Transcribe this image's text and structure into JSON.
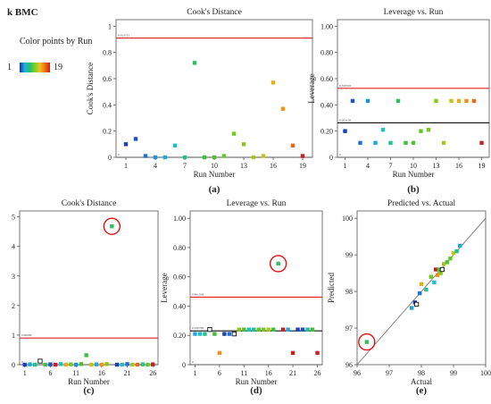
{
  "header": {
    "title": "k BMC"
  },
  "legend": {
    "title": "Color points by Run",
    "min": "1",
    "max": "19"
  },
  "chart_data": [
    {
      "id": "a",
      "type": "scatter",
      "title": "Cook's Distance",
      "xlabel": "Run Number",
      "ylabel": "Cook's Distance",
      "caption": "(a)",
      "xlim": [
        0,
        20
      ],
      "ylim": [
        0,
        1.05
      ],
      "xticks": [
        1,
        4,
        7,
        10,
        13,
        16,
        19
      ],
      "yticks": [
        0,
        0.2,
        0.4,
        0.6,
        0.8,
        1
      ],
      "ytick_labels": [
        "0",
        "0.2",
        "0.4",
        "0.6",
        "0.8",
        "1"
      ],
      "hlines": [
        {
          "y": 0.91,
          "color": "#e02020",
          "label": "0.913712"
        },
        {
          "y": 0,
          "color": "#555555",
          "label": "0"
        }
      ],
      "points": [
        {
          "x": 1,
          "y": 0.1,
          "color": "#1a3fb8"
        },
        {
          "x": 2,
          "y": 0.14,
          "color": "#2050c8"
        },
        {
          "x": 3,
          "y": 0.01,
          "color": "#2070d8"
        },
        {
          "x": 4,
          "y": 0.0,
          "color": "#2090e0"
        },
        {
          "x": 5,
          "y": 0.0,
          "color": "#20a8d8"
        },
        {
          "x": 6,
          "y": 0.09,
          "color": "#20c0c8"
        },
        {
          "x": 7,
          "y": 0.0,
          "color": "#24c090"
        },
        {
          "x": 8,
          "y": 0.72,
          "color": "#30c060"
        },
        {
          "x": 9,
          "y": 0.0,
          "color": "#40c040"
        },
        {
          "x": 10,
          "y": 0.0,
          "color": "#50c030"
        },
        {
          "x": 11,
          "y": 0.01,
          "color": "#60c828"
        },
        {
          "x": 12,
          "y": 0.18,
          "color": "#70c820"
        },
        {
          "x": 13,
          "y": 0.1,
          "color": "#88c818"
        },
        {
          "x": 14,
          "y": 0.0,
          "color": "#a8c818"
        },
        {
          "x": 15,
          "y": 0.01,
          "color": "#c8c018"
        },
        {
          "x": 16,
          "y": 0.57,
          "color": "#e0b018"
        },
        {
          "x": 17,
          "y": 0.37,
          "color": "#f09018"
        },
        {
          "x": 18,
          "y": 0.09,
          "color": "#f06818"
        },
        {
          "x": 19,
          "y": 0.01,
          "color": "#c82020"
        }
      ]
    },
    {
      "id": "b",
      "type": "scatter",
      "title": "Leverage vs. Run",
      "xlabel": "Run Number",
      "ylabel": "Leverage",
      "caption": "(b)",
      "xlim": [
        0,
        20
      ],
      "ylim": [
        0,
        1.05
      ],
      "xticks": [
        1,
        4,
        7,
        10,
        13,
        16,
        19
      ],
      "yticks": [
        0,
        0.2,
        0.4,
        0.6,
        0.8,
        1
      ],
      "ytick_labels": [
        "0",
        "0.20",
        "0.40",
        "0.60",
        "0.80",
        "1.00"
      ],
      "hlines": [
        {
          "y": 0.526316,
          "color": "#e02020",
          "label": "0.526316"
        },
        {
          "y": 0.263158,
          "color": "#111111",
          "label": "0.263158"
        },
        {
          "y": 0,
          "color": "#555555",
          "label": "0"
        }
      ],
      "points": [
        {
          "x": 1,
          "y": 0.2,
          "color": "#1a3fb8"
        },
        {
          "x": 2,
          "y": 0.43,
          "color": "#2050c8"
        },
        {
          "x": 3,
          "y": 0.11,
          "color": "#2070d8"
        },
        {
          "x": 4,
          "y": 0.43,
          "color": "#2090e0"
        },
        {
          "x": 5,
          "y": 0.11,
          "color": "#20a8d8"
        },
        {
          "x": 6,
          "y": 0.21,
          "color": "#20c0c8"
        },
        {
          "x": 7,
          "y": 0.11,
          "color": "#24c090"
        },
        {
          "x": 8,
          "y": 0.43,
          "color": "#30c060"
        },
        {
          "x": 9,
          "y": 0.11,
          "color": "#40c040"
        },
        {
          "x": 10,
          "y": 0.11,
          "color": "#50c030"
        },
        {
          "x": 11,
          "y": 0.2,
          "color": "#60c828"
        },
        {
          "x": 12,
          "y": 0.21,
          "color": "#70c820"
        },
        {
          "x": 13,
          "y": 0.43,
          "color": "#88c818"
        },
        {
          "x": 14,
          "y": 0.11,
          "color": "#a8c818"
        },
        {
          "x": 15,
          "y": 0.43,
          "color": "#c8c018"
        },
        {
          "x": 16,
          "y": 0.43,
          "color": "#e0b018"
        },
        {
          "x": 17,
          "y": 0.43,
          "color": "#f09018"
        },
        {
          "x": 18,
          "y": 0.43,
          "color": "#f06818"
        },
        {
          "x": 19,
          "y": 0.11,
          "color": "#c82020"
        }
      ]
    },
    {
      "id": "c",
      "type": "scatter",
      "title": "Cook's Distance",
      "xlabel": "Run Number",
      "ylabel": "Cook's Distance",
      "caption": "(c)",
      "xlim": [
        0,
        27
      ],
      "ylim": [
        0,
        5.2
      ],
      "xticks": [
        1,
        6,
        11,
        16,
        21,
        26
      ],
      "yticks": [
        0,
        1,
        2,
        3,
        4,
        5
      ],
      "ytick_labels": [
        "0",
        "1",
        "2",
        "3",
        "4",
        "5"
      ],
      "hlines": [
        {
          "y": 0.9,
          "color": "#e02020",
          "label": "0.90099"
        },
        {
          "y": 0,
          "color": "#555555",
          "label": "0"
        }
      ],
      "highlight": {
        "x": 18,
        "y": 4.68
      },
      "points": [
        {
          "x": 1,
          "y": 0.0,
          "color": "#1a3fb8"
        },
        {
          "x": 2,
          "y": 0.01,
          "color": "#20a8d8"
        },
        {
          "x": 3,
          "y": 0.0,
          "color": "#24c090"
        },
        {
          "x": 4,
          "y": 0.12,
          "color": "#ffffff",
          "open": true
        },
        {
          "x": 5,
          "y": 0.0,
          "color": "#40c040"
        },
        {
          "x": 6,
          "y": 0.01,
          "color": "#2050c8"
        },
        {
          "x": 7,
          "y": 0.0,
          "color": "#c82020"
        },
        {
          "x": 8,
          "y": 0.02,
          "color": "#20c0c8"
        },
        {
          "x": 9,
          "y": 0.0,
          "color": "#e0b018"
        },
        {
          "x": 10,
          "y": 0.01,
          "color": "#70c820"
        },
        {
          "x": 11,
          "y": 0.0,
          "color": "#2090e0"
        },
        {
          "x": 12,
          "y": 0.02,
          "color": "#50c030"
        },
        {
          "x": 13,
          "y": 0.32,
          "color": "#40c040"
        },
        {
          "x": 14,
          "y": 0.0,
          "color": "#c8c018"
        },
        {
          "x": 15,
          "y": 0.01,
          "color": "#20a8d8"
        },
        {
          "x": 16,
          "y": 0.0,
          "color": "#f09018"
        },
        {
          "x": 17,
          "y": 0.02,
          "color": "#88c818"
        },
        {
          "x": 18,
          "y": 4.68,
          "color": "#30c060"
        },
        {
          "x": 19,
          "y": 0.0,
          "color": "#1a3fb8"
        },
        {
          "x": 20,
          "y": 0.0,
          "color": "#20c0c8"
        },
        {
          "x": 21,
          "y": 0.02,
          "color": "#2070d8"
        },
        {
          "x": 22,
          "y": 0.0,
          "color": "#a8c818"
        },
        {
          "x": 23,
          "y": 0.0,
          "color": "#f06818"
        },
        {
          "x": 24,
          "y": 0.01,
          "color": "#24c090"
        },
        {
          "x": 25,
          "y": 0.0,
          "color": "#60c828"
        },
        {
          "x": 26,
          "y": 0.01,
          "color": "#c82020"
        }
      ]
    },
    {
      "id": "d",
      "type": "scatter",
      "title": "Leverage vs. Run",
      "xlabel": "Run Number",
      "ylabel": "Leverage",
      "caption": "(d)",
      "xlim": [
        0,
        27
      ],
      "ylim": [
        0,
        1.05
      ],
      "xticks": [
        1,
        6,
        11,
        16,
        21,
        26
      ],
      "yticks": [
        0,
        0.2,
        0.4,
        0.6,
        0.8,
        1
      ],
      "ytick_labels": [
        "0",
        "0.20",
        "0.40",
        "0.60",
        "0.80",
        "1.00"
      ],
      "hlines": [
        {
          "y": 0.461538,
          "color": "#e02020",
          "label": "0.461538"
        },
        {
          "y": 0.230769,
          "color": "#111111",
          "label": "0.230769"
        },
        {
          "y": 0,
          "color": "#555555",
          "label": "0"
        }
      ],
      "highlight": {
        "x": 18,
        "y": 0.69
      },
      "points": [
        {
          "x": 1,
          "y": 0.21,
          "color": "#20a8d8"
        },
        {
          "x": 2,
          "y": 0.21,
          "color": "#20c0c8"
        },
        {
          "x": 3,
          "y": 0.21,
          "color": "#24c090"
        },
        {
          "x": 4,
          "y": 0.24,
          "color": "#ffffff",
          "open": true
        },
        {
          "x": 5,
          "y": 0.21,
          "color": "#40c040"
        },
        {
          "x": 6,
          "y": 0.08,
          "color": "#f09018"
        },
        {
          "x": 7,
          "y": 0.21,
          "color": "#1a3fb8"
        },
        {
          "x": 8,
          "y": 0.21,
          "color": "#2070d8"
        },
        {
          "x": 9,
          "y": 0.21,
          "color": "#ffffff",
          "open": true
        },
        {
          "x": 10,
          "y": 0.24,
          "color": "#88c818"
        },
        {
          "x": 11,
          "y": 0.24,
          "color": "#50c030"
        },
        {
          "x": 12,
          "y": 0.24,
          "color": "#20c0c8"
        },
        {
          "x": 13,
          "y": 0.24,
          "color": "#24c090"
        },
        {
          "x": 14,
          "y": 0.24,
          "color": "#60c828"
        },
        {
          "x": 15,
          "y": 0.24,
          "color": "#70c820"
        },
        {
          "x": 16,
          "y": 0.24,
          "color": "#a8c818"
        },
        {
          "x": 17,
          "y": 0.24,
          "color": "#40c040"
        },
        {
          "x": 18,
          "y": 0.69,
          "color": "#30c060"
        },
        {
          "x": 19,
          "y": 0.24,
          "color": "#c82020"
        },
        {
          "x": 20,
          "y": 0.24,
          "color": "#20a8d8"
        },
        {
          "x": 21,
          "y": 0.08,
          "color": "#c82020"
        },
        {
          "x": 22,
          "y": 0.24,
          "color": "#1a3fb8"
        },
        {
          "x": 23,
          "y": 0.24,
          "color": "#2050c8"
        },
        {
          "x": 24,
          "y": 0.24,
          "color": "#24c090"
        },
        {
          "x": 25,
          "y": 0.24,
          "color": "#40c040"
        },
        {
          "x": 26,
          "y": 0.08,
          "color": "#c82020"
        }
      ]
    },
    {
      "id": "e",
      "type": "scatter",
      "title": "Predicted vs. Actual",
      "xlabel": "Actual",
      "ylabel": "Predicted",
      "caption": "(e)",
      "xlim": [
        96,
        100
      ],
      "ylim": [
        96,
        100.2
      ],
      "xticks": [
        96,
        97,
        98,
        99,
        100
      ],
      "yticks": [
        96,
        97,
        98,
        99,
        100
      ],
      "xtick_labels": [
        "96",
        "97",
        "98",
        "99",
        "100"
      ],
      "ytick_labels": [
        "96",
        "97",
        "98",
        "99",
        "100"
      ],
      "diagonal": true,
      "highlight": {
        "x": 96.3,
        "y": 96.62
      },
      "points": [
        {
          "x": 96.3,
          "y": 96.62,
          "color": "#30c060"
        },
        {
          "x": 97.7,
          "y": 97.55,
          "color": "#20a8d8"
        },
        {
          "x": 97.8,
          "y": 97.7,
          "color": "#1a3fb8"
        },
        {
          "x": 97.85,
          "y": 97.65,
          "color": "#ffffff",
          "open": true
        },
        {
          "x": 97.95,
          "y": 97.95,
          "color": "#2070d8"
        },
        {
          "x": 98.0,
          "y": 98.2,
          "color": "#e0b018"
        },
        {
          "x": 98.15,
          "y": 98.05,
          "color": "#24c090"
        },
        {
          "x": 98.3,
          "y": 98.4,
          "color": "#70c820"
        },
        {
          "x": 98.4,
          "y": 98.25,
          "color": "#20c0c8"
        },
        {
          "x": 98.45,
          "y": 98.6,
          "color": "#c82020"
        },
        {
          "x": 98.5,
          "y": 98.45,
          "color": "#f09018"
        },
        {
          "x": 98.55,
          "y": 98.6,
          "color": "#40c040"
        },
        {
          "x": 98.6,
          "y": 98.5,
          "color": "#88c818"
        },
        {
          "x": 98.65,
          "y": 98.6,
          "color": "#ffffff",
          "open": true
        },
        {
          "x": 98.7,
          "y": 98.75,
          "color": "#a8c818"
        },
        {
          "x": 98.8,
          "y": 98.8,
          "color": "#50c030"
        },
        {
          "x": 98.9,
          "y": 98.9,
          "color": "#60c828"
        },
        {
          "x": 99.0,
          "y": 99.05,
          "color": "#c8c018"
        },
        {
          "x": 99.1,
          "y": 99.1,
          "color": "#24c090"
        },
        {
          "x": 99.2,
          "y": 99.25,
          "color": "#20a8d8"
        }
      ]
    }
  ]
}
